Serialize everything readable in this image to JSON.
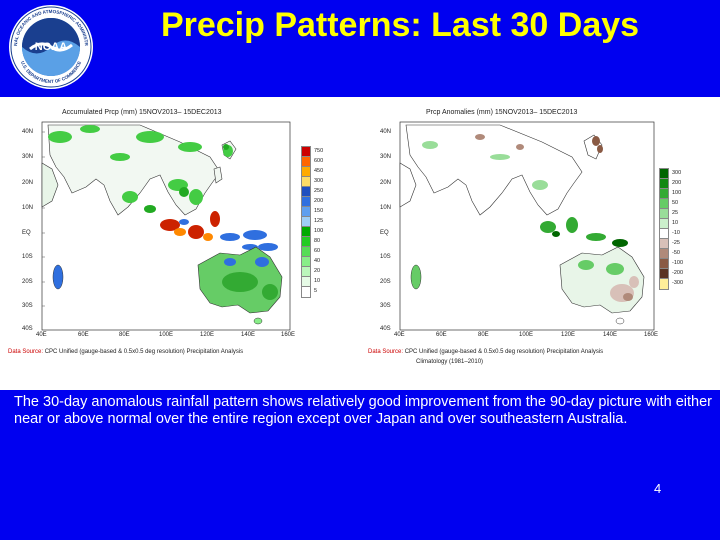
{
  "slide": {
    "title": "Precip Patterns: Last 30 Days",
    "caption": "The 30-day anomalous rainfall pattern shows relatively good improvement from the 90-day picture with either near or above normal over the entire region except over Japan and over southeastern Australia.",
    "page_number": "4",
    "logo": {
      "text": "NOAA",
      "ring_text_top": "NATIONAL OCEANIC AND ATMOSPHERIC ADMINISTRATION",
      "ring_text_bottom": "U.S. DEPARTMENT OF COMMERCE",
      "icon": "noaa-logo-icon"
    },
    "background_color": "#0000f0",
    "title_color": "#ffff00"
  },
  "maps": {
    "left": {
      "title": "Accumulated Prcp (mm) 15NOV2013– 15DEC2013",
      "lat_labels": [
        "40N",
        "30N",
        "20N",
        "10N",
        "EQ",
        "10S",
        "20S",
        "30S",
        "40S"
      ],
      "lon_labels": [
        "40E",
        "60E",
        "80E",
        "100E",
        "120E",
        "140E",
        "160E"
      ],
      "legend": [
        {
          "label": "750",
          "color": "#cc0000"
        },
        {
          "label": "600",
          "color": "#ff6600"
        },
        {
          "label": "450",
          "color": "#ffaa00"
        },
        {
          "label": "300",
          "color": "#ffdd66"
        },
        {
          "label": "250",
          "color": "#1f4fbf"
        },
        {
          "label": "200",
          "color": "#2f6fdf"
        },
        {
          "label": "150",
          "color": "#5f9fef"
        },
        {
          "label": "125",
          "color": "#9fcff7"
        },
        {
          "label": "100",
          "color": "#00aa00"
        },
        {
          "label": "80",
          "color": "#22cc22"
        },
        {
          "label": "60",
          "color": "#55dd55"
        },
        {
          "label": "40",
          "color": "#88ee88"
        },
        {
          "label": "20",
          "color": "#bbf7bb"
        },
        {
          "label": "10",
          "color": "#e6fbe6"
        },
        {
          "label": "5",
          "color": "#ffffff"
        }
      ],
      "data_source_label": "Data Source:",
      "data_source_text": "CPC Unified (gauge-based & 0.5x0.5 deg resolution) Precipitation Analysis"
    },
    "right": {
      "title": "Prcp Anomalies (mm) 15NOV2013– 15DEC2013",
      "lat_labels": [
        "40N",
        "30N",
        "20N",
        "10N",
        "EQ",
        "10S",
        "20S",
        "30S",
        "40S"
      ],
      "lon_labels": [
        "40E",
        "60E",
        "80E",
        "100E",
        "120E",
        "140E",
        "160E"
      ],
      "legend": [
        {
          "label": "300",
          "color": "#006600"
        },
        {
          "label": "200",
          "color": "#118811"
        },
        {
          "label": "100",
          "color": "#33aa33"
        },
        {
          "label": "50",
          "color": "#66cc66"
        },
        {
          "label": "25",
          "color": "#99dd99"
        },
        {
          "label": "10",
          "color": "#ccf0cc"
        },
        {
          "label": "-10",
          "color": "#ffffff"
        },
        {
          "label": "-25",
          "color": "#d8c0b8"
        },
        {
          "label": "-50",
          "color": "#b08a7a"
        },
        {
          "label": "-100",
          "color": "#8a5a44"
        },
        {
          "label": "-200",
          "color": "#5a3322"
        },
        {
          "label": "-300",
          "color": "#ffee99"
        }
      ],
      "data_source_label": "Data Source:",
      "data_source_text": "CPC Unified (gauge-based & 0.5x0.5 deg resolution) Precipitation Analysis",
      "climatology_text": "Climatology (1981–2010)"
    }
  }
}
